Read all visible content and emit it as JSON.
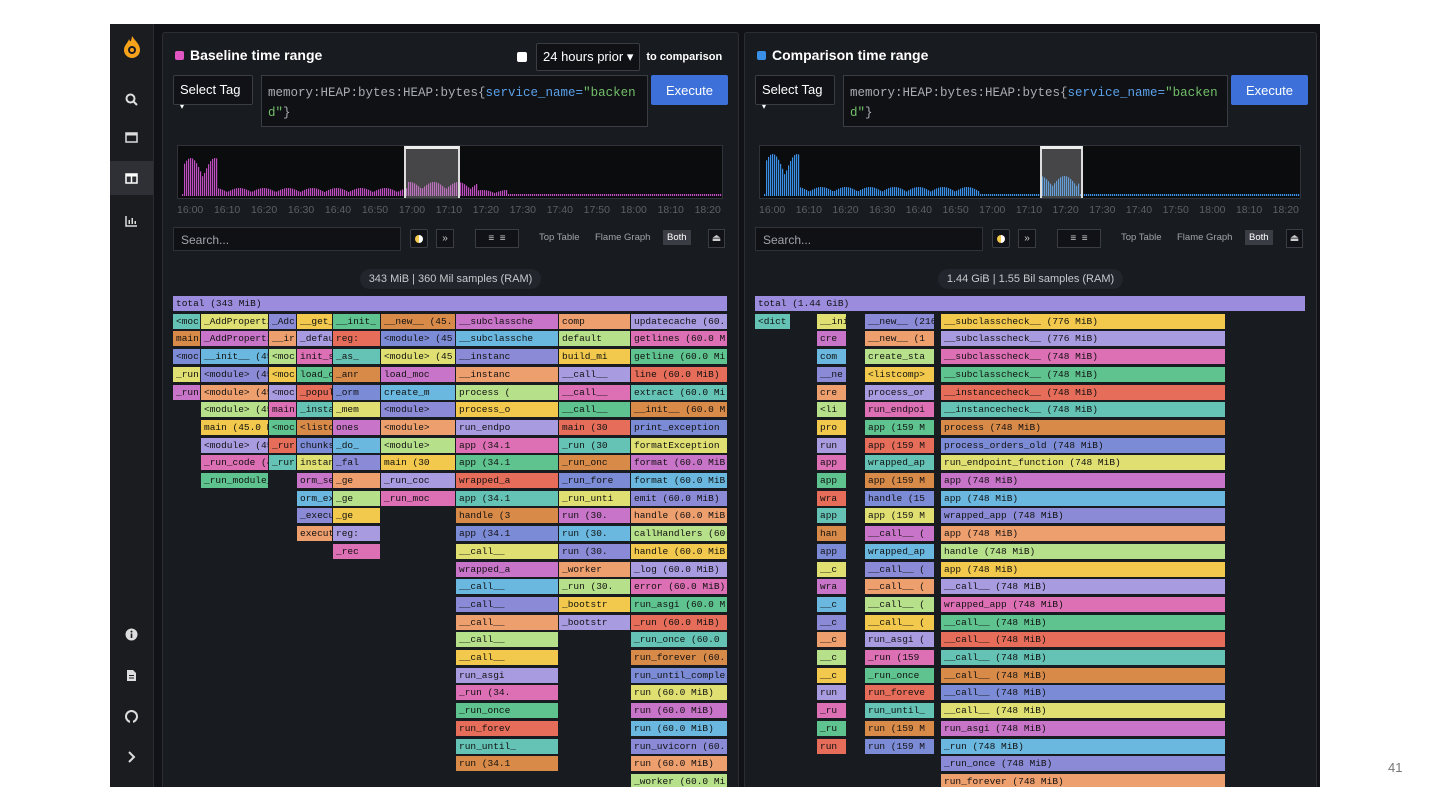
{
  "sidebar": {
    "logo": "pyroscope-flame-logo",
    "top_icons": [
      "search-icon",
      "single-view-icon",
      "comparison-view-icon",
      "diff-view-icon"
    ],
    "bottom_icons": [
      "info-icon",
      "docs-icon",
      "github-icon",
      "chevron-right-icon"
    ],
    "active_index": 2
  },
  "baseline": {
    "title": "Baseline time range",
    "color": "#e256c4",
    "sync_label": "24 hours prior",
    "sync_suffix": "to comparison",
    "tag_label": "Select Tag",
    "query_prefix": "memory:HEAP:bytes:HEAP:bytes{",
    "query_key": "service_name=",
    "query_value": "\"backend\"",
    "query_suffix": "}",
    "execute_label": "Execute",
    "ticks": [
      "16:00",
      "16:10",
      "16:20",
      "16:30",
      "16:40",
      "16:50",
      "17:00",
      "17:10",
      "17:20",
      "17:30",
      "17:40",
      "17:50",
      "18:00",
      "18:10",
      "18:20"
    ],
    "search_placeholder": "Search...",
    "summary": "343 MiB | 360 Mil samples (RAM)",
    "tabs": [
      "Top Table",
      "Flame Graph",
      "Both"
    ],
    "active_tab": "Both"
  },
  "comparison": {
    "title": "Comparison time range",
    "color": "#3a8fe6",
    "tag_label": "Select Tag",
    "query_prefix": "memory:HEAP:bytes:HEAP:bytes{",
    "query_key": "service_name=",
    "query_value": "\"backend\"",
    "query_suffix": "}",
    "execute_label": "Execute",
    "ticks": [
      "16:00",
      "16:10",
      "16:20",
      "16:30",
      "16:40",
      "16:50",
      "17:00",
      "17:10",
      "17:20",
      "17:30",
      "17:40",
      "17:50",
      "18:00",
      "18:10",
      "18:20"
    ],
    "search_placeholder": "Search...",
    "summary": "1.44 GiB | 1.55 Bil samples (RAM)",
    "tabs": [
      "Top Table",
      "Flame Graph",
      "Both"
    ],
    "active_tab": "Both"
  },
  "flame_a": {
    "total": "total (343 MiB)",
    "columns": [
      [
        "<moc",
        "main",
        "<moc",
        "_run",
        "_run"
      ],
      [
        "_AddProperti",
        "_AddProperti",
        "__init__ (45",
        "<module> (45",
        "<module> (45",
        "<module> (45",
        "main (45.0 M",
        "<module> (45",
        "_run_code (4",
        "_run_module_"
      ],
      [
        "_Adc",
        "__ir",
        "<moc",
        "<moc",
        "<moc",
        "main",
        "<moc",
        "_rur",
        "_rur"
      ],
      [
        "__get_",
        "_defau",
        "init_s",
        "load_c",
        "_popul",
        "_insta",
        "<listc",
        "chunks",
        "instan",
        "orm_se",
        "orm_ex",
        "_execu",
        "execut"
      ],
      [
        "__init_",
        "reg:",
        "_as_",
        "_anr",
        "_orm",
        "_mem",
        "ones",
        "_do_",
        "_fal",
        "_ge",
        "_ge",
        "_ge",
        "reg:",
        "_rec"
      ],
      [
        "__new__ (45.",
        "<module> (45",
        "<module> (45",
        "load_moc",
        "create_m",
        "<module>",
        "<module>",
        "<module>",
        "main (30",
        "_run_coc",
        "_run_moc"
      ],
      [
        "__subclassche",
        "__subclassche",
        "__instanc",
        "__instanc",
        "process (",
        "process_o",
        "run_endpo",
        "app (34.1",
        "app (34.1",
        "wrapped_a",
        "app (34.1",
        "handle (3",
        "app (34.1",
        "__call__",
        "wrapped_a",
        "__call__",
        "__call__",
        "__call__",
        "__call__",
        "__call__",
        "run_asgi",
        "_run (34.",
        "_run_once",
        "run_forev",
        "run_until_",
        "run (34.1"
      ],
      [
        "comp",
        "default",
        "build_mi",
        "__call__",
        "__call__",
        "__call__",
        "main (30",
        "_run (30",
        "_run_onc",
        "_run_fore",
        "_run_unti",
        "run (30.",
        "run (30.",
        "run (30.",
        "_worker",
        "_run (30.",
        "_bootstr",
        "_bootstr"
      ],
      [
        "updatecache (60.",
        "getlines (60.0 M",
        "getline (60.0 Mi",
        "line (60.0 MiB)",
        "extract (60.0 Mi",
        "__init__ (60.0 M",
        "print_exception",
        "formatException",
        "format (60.0 MiB",
        "format (60.0 MiB",
        "emit (60.0 MiB)",
        "handle (60.0 MiB",
        "callHandlers (60",
        "handle (60.0 MiB",
        "_log (60.0 MiB)",
        "error (60.0 MiB)",
        "run_asgi (60.0 M",
        "_run (60.0 MiB)",
        "_run_once (60.0",
        "run_forever (60.",
        "run_until_comple",
        "run (60.0 MiB)",
        "run (60.0 MiB)",
        "run (60.0 MiB)",
        "run_uvicorn (60.",
        "run (60.0 MiB)",
        "_worker (60.0 Mi"
      ]
    ]
  },
  "flame_b": {
    "total": "total (1.44 GiB)",
    "columns": [
      [
        "<dict"
      ],
      [
        "__init",
        "cre",
        "com",
        "__ne",
        "cre",
        "<li",
        "pro",
        "run",
        "app",
        "app",
        "wra",
        "app",
        "han",
        "app",
        "__c",
        "wra",
        "__c",
        "__c",
        "__c",
        "__c",
        "__c",
        "run",
        "_ru",
        "_ru",
        "run"
      ],
      [
        "__new__ (216 M",
        "__new__ (1",
        "create_sta",
        "<listcomp>",
        "process_or",
        "run_endpoi",
        "app (159 M",
        "app (159 M",
        "wrapped_ap",
        "app (159 M",
        "handle (15",
        "app (159 M",
        "__call__ (",
        "wrapped_ap",
        "__call__ (",
        "__call__ (",
        "__call__ (",
        "__call__ (",
        "run_asgi (",
        "_run (159",
        "_run_once",
        "run_foreve",
        "run_until_",
        "run (159 M",
        "run (159 M"
      ],
      [
        "__subclasscheck__ (776 MiB)",
        "__subclasscheck__ (776 MiB)",
        "__subclasscheck__ (748 MiB)",
        "__subclasscheck__ (748 MiB)",
        "__instancecheck__ (748 MiB)",
        "__instancecheck__ (748 MiB)",
        "process (748 MiB)",
        "process_orders_old (748 MiB)",
        "run_endpoint_function (748 MiB)",
        "app (748 MiB)",
        "app (748 MiB)",
        "wrapped_app (748 MiB)",
        "app (748 MiB)",
        "handle (748 MiB)",
        "app (748 MiB)",
        "__call__ (748 MiB)",
        "wrapped_app (748 MiB)",
        "__call__ (748 MiB)",
        "__call__ (748 MiB)",
        "__call__ (748 MiB)",
        "__call__ (748 MiB)",
        "__call__ (748 MiB)",
        "__call__ (748 MiB)",
        "run_asgi (748 MiB)",
        "_run (748 MiB)",
        "_run_once (748 MiB)",
        "run_forever (748 MiB)"
      ]
    ]
  },
  "slide_number": "41"
}
